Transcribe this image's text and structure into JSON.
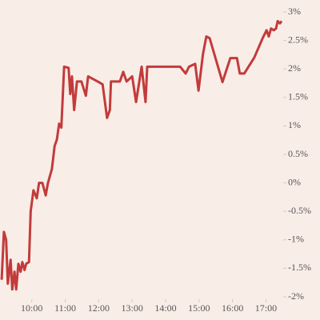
{
  "chart_data": {
    "type": "line",
    "x": [
      546,
      550,
      554,
      557,
      562,
      565,
      569,
      572,
      576,
      580,
      583,
      587,
      590,
      595,
      598,
      603,
      609,
      613,
      619,
      625,
      629,
      636,
      641,
      645,
      649,
      653,
      658,
      666,
      669,
      672,
      676,
      681,
      689,
      697,
      701,
      718,
      727,
      732,
      735,
      740,
      742,
      758,
      764,
      770,
      780,
      787,
      797,
      804,
      807,
      866,
      876,
      882,
      893,
      899,
      907,
      913,
      919,
      942,
      956,
      968,
      973,
      981,
      999,
      1014,
      1021,
      1025,
      1029,
      1034,
      1038,
      1041,
      1045,
      1048
    ],
    "series": [
      {
        "color": "#c23b3b",
        "values": [
          -1.7,
          -0.86,
          -1.0,
          -1.77,
          -1.35,
          -1.87,
          -1.56,
          -1.87,
          -1.42,
          -1.56,
          -1.39,
          -1.53,
          -1.42,
          -1.39,
          -0.5,
          -0.13,
          -0.27,
          0,
          0,
          -0.22,
          0,
          0.24,
          0.65,
          0.76,
          1.04,
          0.97,
          2.04,
          2.02,
          1.56,
          1.87,
          1.28,
          1.78,
          1.78,
          1.53,
          1.87,
          1.78,
          1.73,
          1.36,
          1.14,
          1.28,
          1.78,
          1.78,
          1.95,
          1.78,
          1.87,
          1.42,
          2.04,
          1.42,
          2.04,
          2.04,
          1.92,
          2.04,
          2.09,
          1.62,
          2.26,
          2.57,
          2.54,
          1.77,
          2.19,
          2.19,
          1.92,
          1.92,
          2.2,
          2.54,
          2.68,
          2.57,
          2.71,
          2.68,
          2.71,
          2.84,
          2.8,
          2.84
        ]
      }
    ],
    "xlim": [
      543,
      1048
    ],
    "xticks": [
      {
        "value": 600,
        "label": "10:00"
      },
      {
        "value": 660,
        "label": "11:00"
      },
      {
        "value": 720,
        "label": "12:00"
      },
      {
        "value": 780,
        "label": "13:00"
      },
      {
        "value": 840,
        "label": "14:00"
      },
      {
        "value": 900,
        "label": "15:00"
      },
      {
        "value": 960,
        "label": "16:00"
      },
      {
        "value": 1020,
        "label": "17:00"
      }
    ],
    "ylim": [
      -2,
      3
    ],
    "yticks": [
      {
        "value": 3,
        "label": "3%"
      },
      {
        "value": 2.5,
        "label": "2.5%"
      },
      {
        "value": 2,
        "label": "2%"
      },
      {
        "value": 1.5,
        "label": "1.5%"
      },
      {
        "value": 1,
        "label": "1%"
      },
      {
        "value": 0.5,
        "label": "0.5%"
      },
      {
        "value": 0,
        "label": "0%"
      },
      {
        "value": -0.5,
        "label": "-0.5%"
      },
      {
        "value": -1,
        "label": "-1%"
      },
      {
        "value": -1.5,
        "label": "-1.5%"
      },
      {
        "value": -2,
        "label": "-2%"
      }
    ],
    "grid": false
  }
}
